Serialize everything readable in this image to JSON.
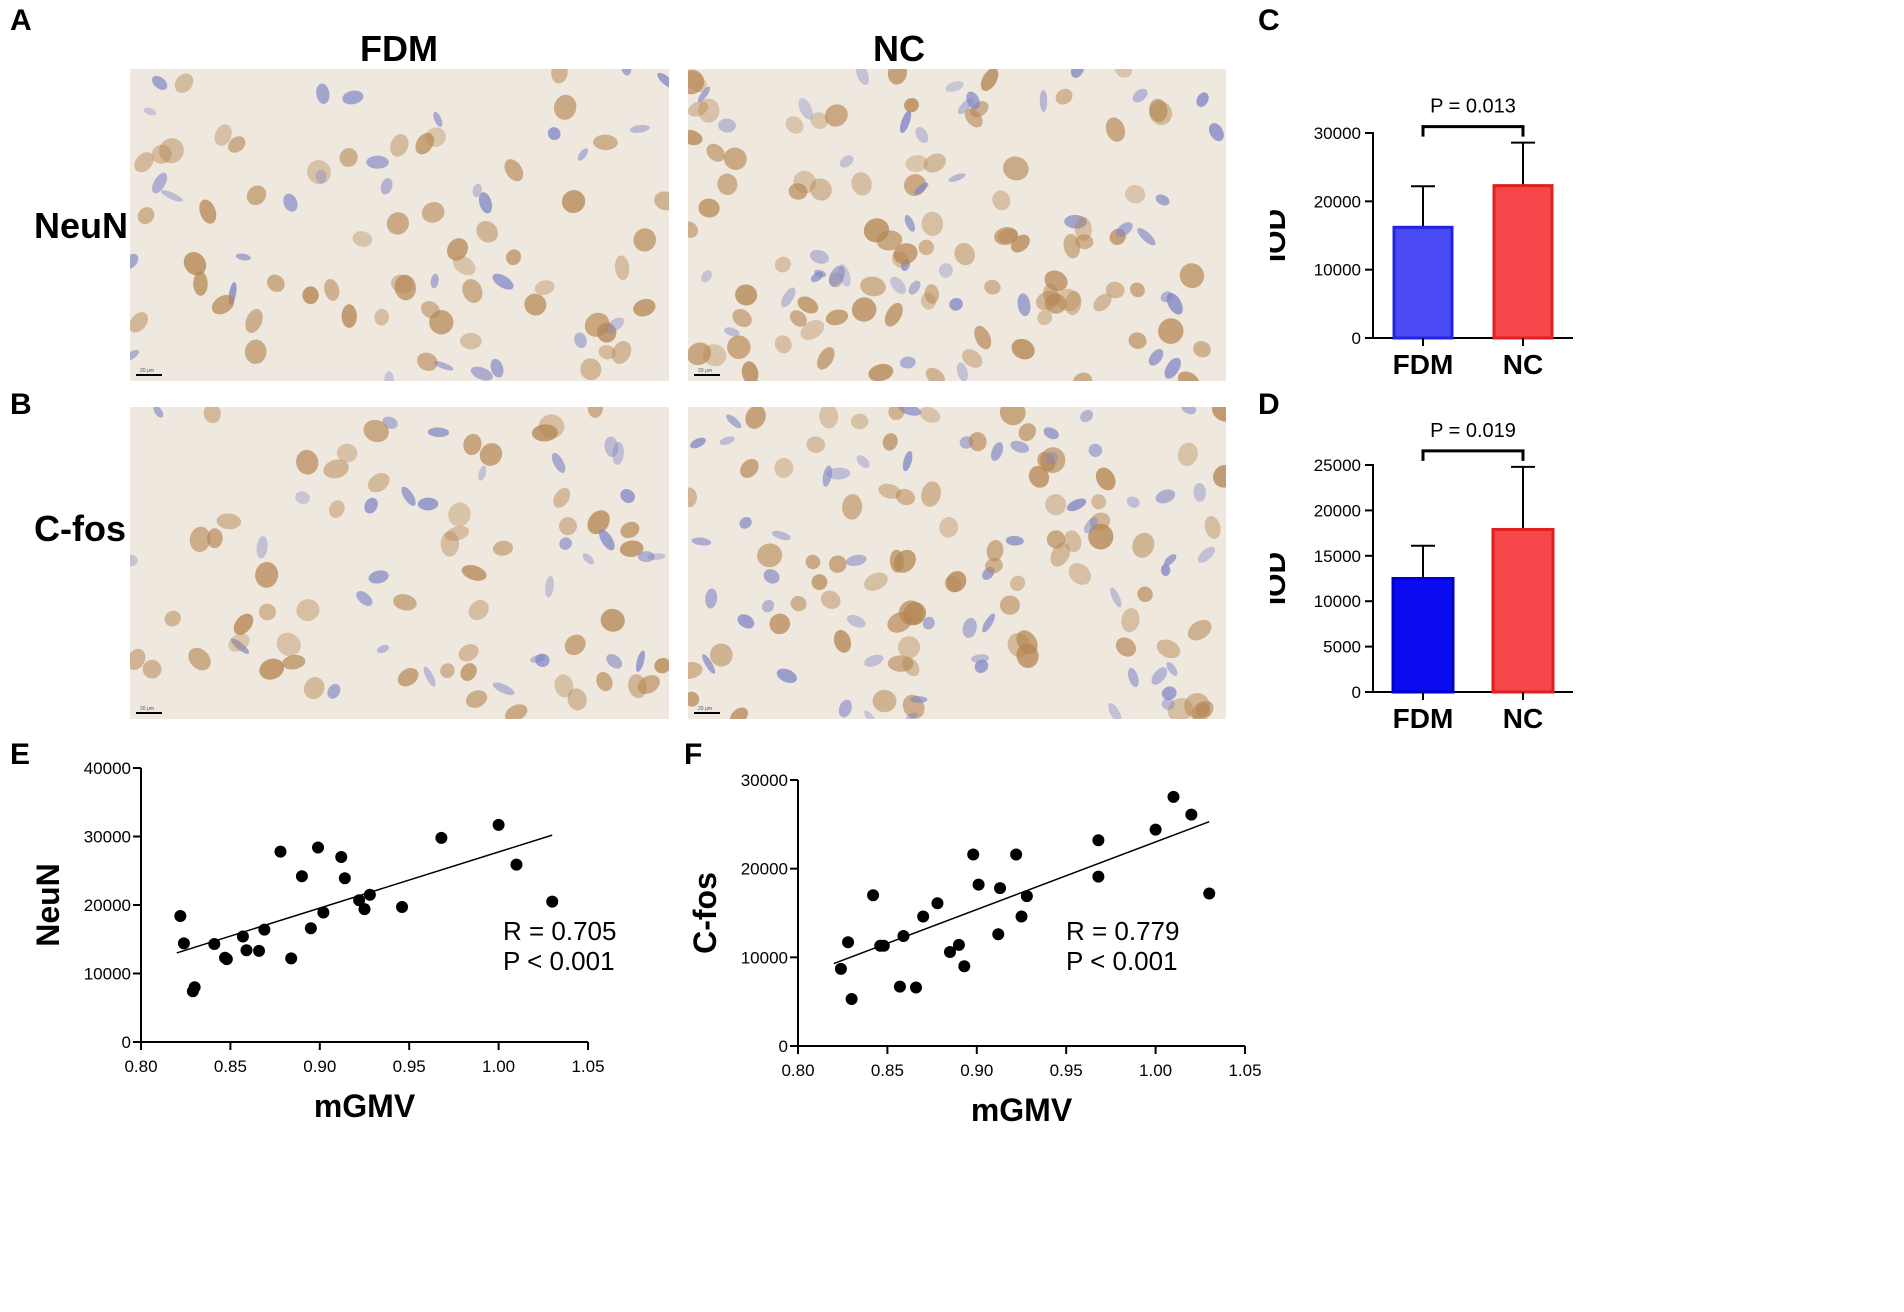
{
  "panel_labels": {
    "a": "A",
    "b": "B",
    "c": "C",
    "d": "D",
    "e": "E",
    "f": "F"
  },
  "micrographs": {
    "col_titles": [
      "FDM",
      "NC"
    ],
    "row_titles": [
      "NeuN",
      "C-fos"
    ],
    "scale_bar_label": "20 μm",
    "colors": {
      "background": "#efe8df",
      "stain_brown": "#b58652",
      "stain_blue": "#7f86c4"
    }
  },
  "chart_data": [
    {
      "type": "bar",
      "panel": "C",
      "categories": [
        "FDM",
        "NC"
      ],
      "values": [
        16200,
        22300
      ],
      "error_upper": [
        22200,
        28600
      ],
      "ylabel": "IOD",
      "ylim": [
        0,
        30000
      ],
      "yticks": [
        0,
        10000,
        20000,
        30000
      ],
      "annotation": "P = 0.013",
      "colors": [
        "#4a4af5",
        "#f5464a"
      ],
      "edge_colors": [
        "#2323e0",
        "#e02020"
      ]
    },
    {
      "type": "bar",
      "panel": "D",
      "categories": [
        "FDM",
        "NC"
      ],
      "values": [
        12500,
        17900
      ],
      "error_upper": [
        16100,
        24800
      ],
      "ylabel": "IOD",
      "ylim": [
        0,
        25000
      ],
      "yticks": [
        0,
        5000,
        10000,
        15000,
        20000,
        25000
      ],
      "annotation": "P = 0.019",
      "colors": [
        "#0b0bf0",
        "#f5464a"
      ],
      "edge_colors": [
        "#0000c8",
        "#e02020"
      ]
    },
    {
      "type": "scatter",
      "panel": "E",
      "xlabel": "mGMV",
      "ylabel": "NeuN",
      "xlim": [
        0.8,
        1.05
      ],
      "ylim": [
        0,
        40000
      ],
      "xticks": [
        "0.80",
        "0.85",
        "0.90",
        "0.95",
        "1.00",
        "1.05"
      ],
      "yticks": [
        0,
        10000,
        20000,
        30000,
        40000
      ],
      "stats": [
        "R = 0.705",
        "P < 0.001"
      ],
      "fit_line": {
        "x": [
          0.82,
          1.03
        ],
        "y": [
          13000,
          30200
        ]
      },
      "points": [
        {
          "x": 0.822,
          "y": 18400
        },
        {
          "x": 0.824,
          "y": 14400
        },
        {
          "x": 0.829,
          "y": 7400
        },
        {
          "x": 0.83,
          "y": 8000
        },
        {
          "x": 0.841,
          "y": 14300
        },
        {
          "x": 0.847,
          "y": 12300
        },
        {
          "x": 0.848,
          "y": 12100
        },
        {
          "x": 0.857,
          "y": 15400
        },
        {
          "x": 0.859,
          "y": 13400
        },
        {
          "x": 0.866,
          "y": 13300
        },
        {
          "x": 0.869,
          "y": 16400
        },
        {
          "x": 0.878,
          "y": 27800
        },
        {
          "x": 0.884,
          "y": 12200
        },
        {
          "x": 0.89,
          "y": 24200
        },
        {
          "x": 0.895,
          "y": 16600
        },
        {
          "x": 0.899,
          "y": 28400
        },
        {
          "x": 0.902,
          "y": 18900
        },
        {
          "x": 0.912,
          "y": 27000
        },
        {
          "x": 0.914,
          "y": 23900
        },
        {
          "x": 0.922,
          "y": 20700
        },
        {
          "x": 0.925,
          "y": 19400
        },
        {
          "x": 0.928,
          "y": 21500
        },
        {
          "x": 0.946,
          "y": 19700
        },
        {
          "x": 0.968,
          "y": 29800
        },
        {
          "x": 1.0,
          "y": 31700
        },
        {
          "x": 1.01,
          "y": 25900
        },
        {
          "x": 1.03,
          "y": 20500
        }
      ]
    },
    {
      "type": "scatter",
      "panel": "F",
      "xlabel": "mGMV",
      "ylabel": "C-fos",
      "xlim": [
        0.8,
        1.05
      ],
      "ylim": [
        0,
        30000
      ],
      "xticks": [
        "0.80",
        "0.85",
        "0.90",
        "0.95",
        "1.00",
        "1.05"
      ],
      "yticks": [
        0,
        10000,
        20000,
        30000
      ],
      "stats": [
        "R = 0.779",
        "P < 0.001"
      ],
      "fit_line": {
        "x": [
          0.82,
          1.03
        ],
        "y": [
          9300,
          25300
        ]
      },
      "points": [
        {
          "x": 0.824,
          "y": 8700
        },
        {
          "x": 0.828,
          "y": 11700
        },
        {
          "x": 0.83,
          "y": 5300
        },
        {
          "x": 0.842,
          "y": 17000
        },
        {
          "x": 0.846,
          "y": 11300
        },
        {
          "x": 0.848,
          "y": 11300
        },
        {
          "x": 0.857,
          "y": 6700
        },
        {
          "x": 0.859,
          "y": 12400
        },
        {
          "x": 0.866,
          "y": 6600
        },
        {
          "x": 0.87,
          "y": 14600
        },
        {
          "x": 0.878,
          "y": 16100
        },
        {
          "x": 0.885,
          "y": 10600
        },
        {
          "x": 0.89,
          "y": 11400
        },
        {
          "x": 0.893,
          "y": 9000
        },
        {
          "x": 0.898,
          "y": 21600
        },
        {
          "x": 0.901,
          "y": 18200
        },
        {
          "x": 0.912,
          "y": 12600
        },
        {
          "x": 0.913,
          "y": 17800
        },
        {
          "x": 0.922,
          "y": 21600
        },
        {
          "x": 0.925,
          "y": 14600
        },
        {
          "x": 0.928,
          "y": 16900
        },
        {
          "x": 0.968,
          "y": 23200
        },
        {
          "x": 0.968,
          "y": 19100
        },
        {
          "x": 1.0,
          "y": 24400
        },
        {
          "x": 1.01,
          "y": 28100
        },
        {
          "x": 1.02,
          "y": 26100
        },
        {
          "x": 1.03,
          "y": 17200
        }
      ]
    }
  ]
}
